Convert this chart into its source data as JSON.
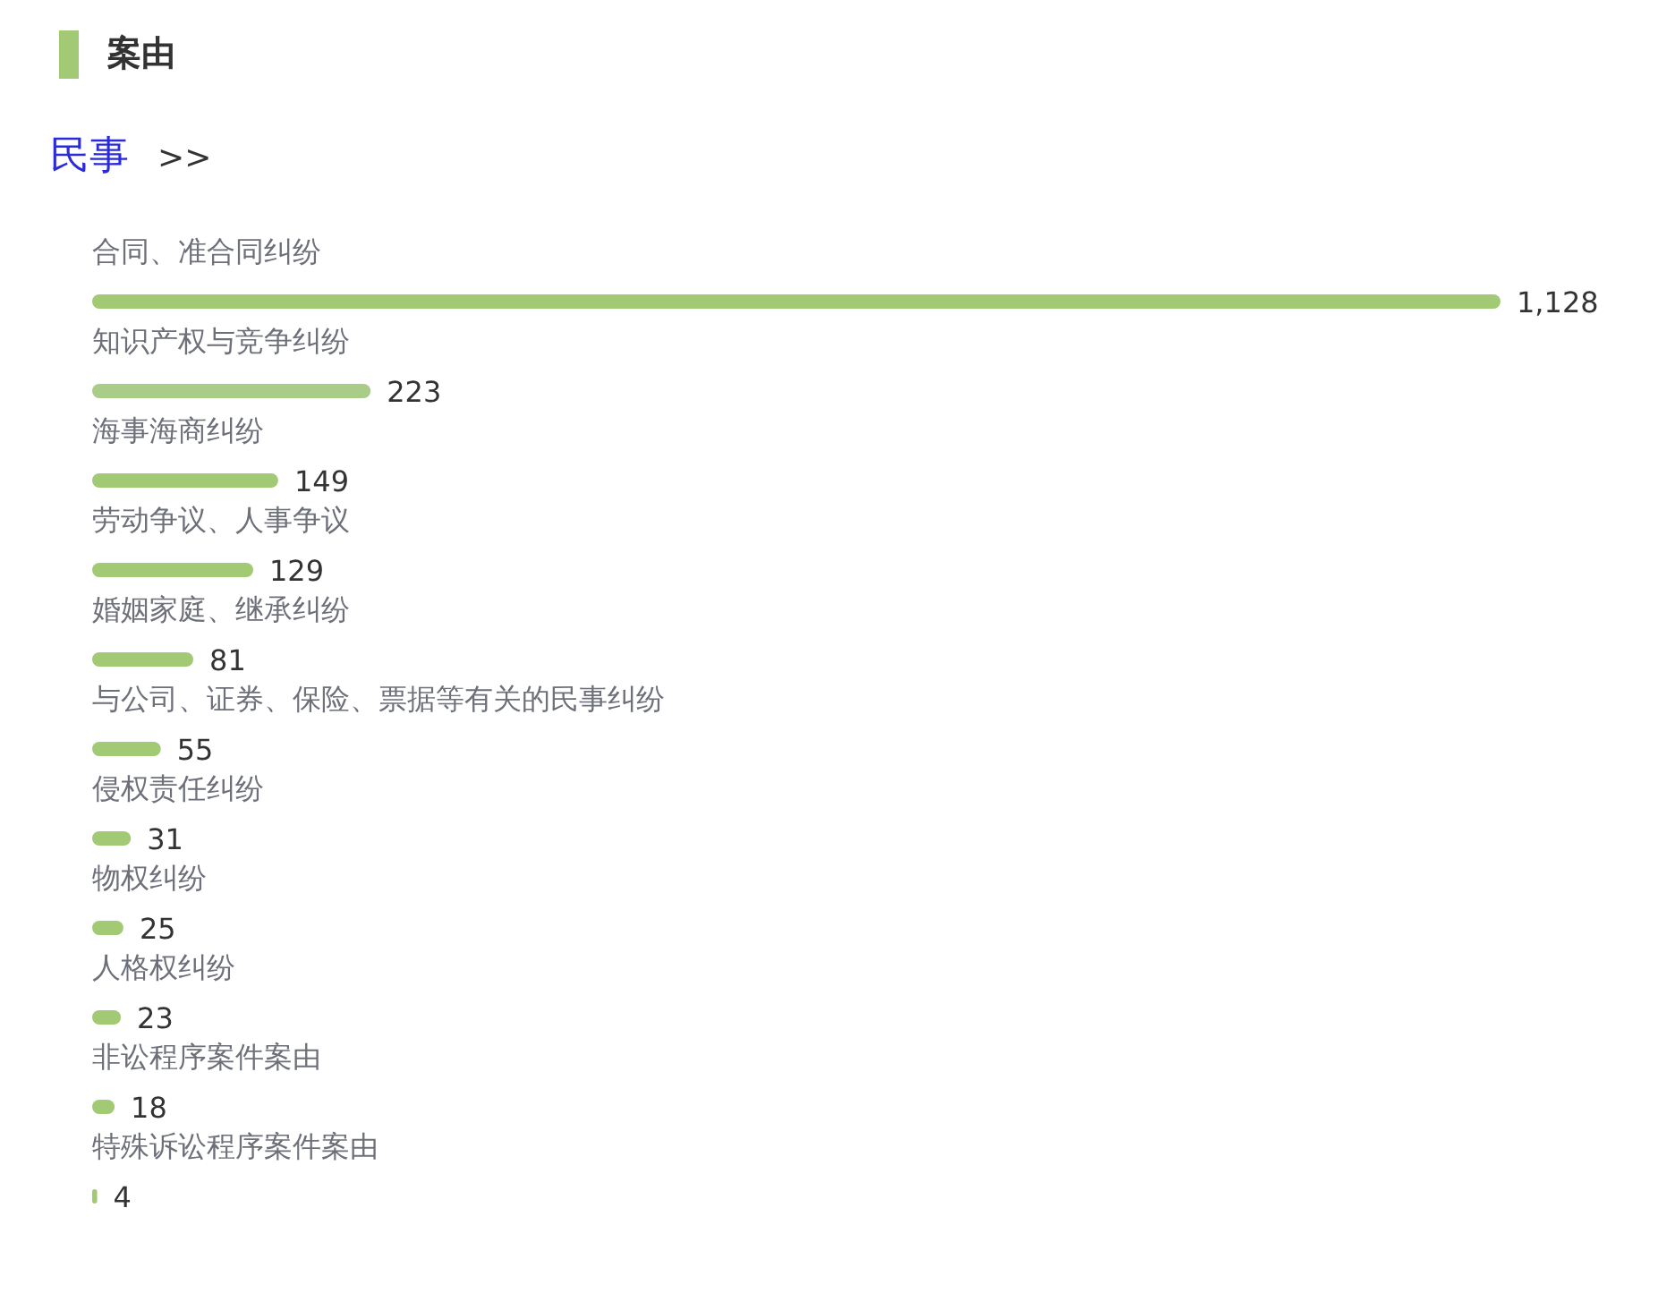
{
  "chart_data": {
    "type": "bar",
    "orientation": "horizontal",
    "title": "案由",
    "subtitle": "民事",
    "annotations": [
      ">>"
    ],
    "categories": [
      "合同、准合同纠纷",
      "知识产权与竞争纠纷",
      "海事海商纠纷",
      "劳动争议、人事争议",
      "婚姻家庭、继承纠纷",
      "与公司、证券、保险、票据等有关的民事纠纷",
      "侵权责任纠纷",
      "物权纠纷",
      "人格权纠纷",
      "非讼程序案件案由",
      "特殊诉讼程序案件案由"
    ],
    "values": [
      1128,
      223,
      149,
      129,
      81,
      55,
      31,
      25,
      23,
      18,
      4
    ],
    "colors": [
      "#a2c974",
      "#a9cd88",
      "#a2c974",
      "#a2c974",
      "#a2c974",
      "#a2c974",
      "#a2c974",
      "#a2c974",
      "#a2c974",
      "#a2c974",
      "#a2c974"
    ],
    "value_labels": [
      "1,128",
      "223",
      "149",
      "129",
      "81",
      "55",
      "31",
      "25",
      "23",
      "18",
      "4"
    ]
  }
}
